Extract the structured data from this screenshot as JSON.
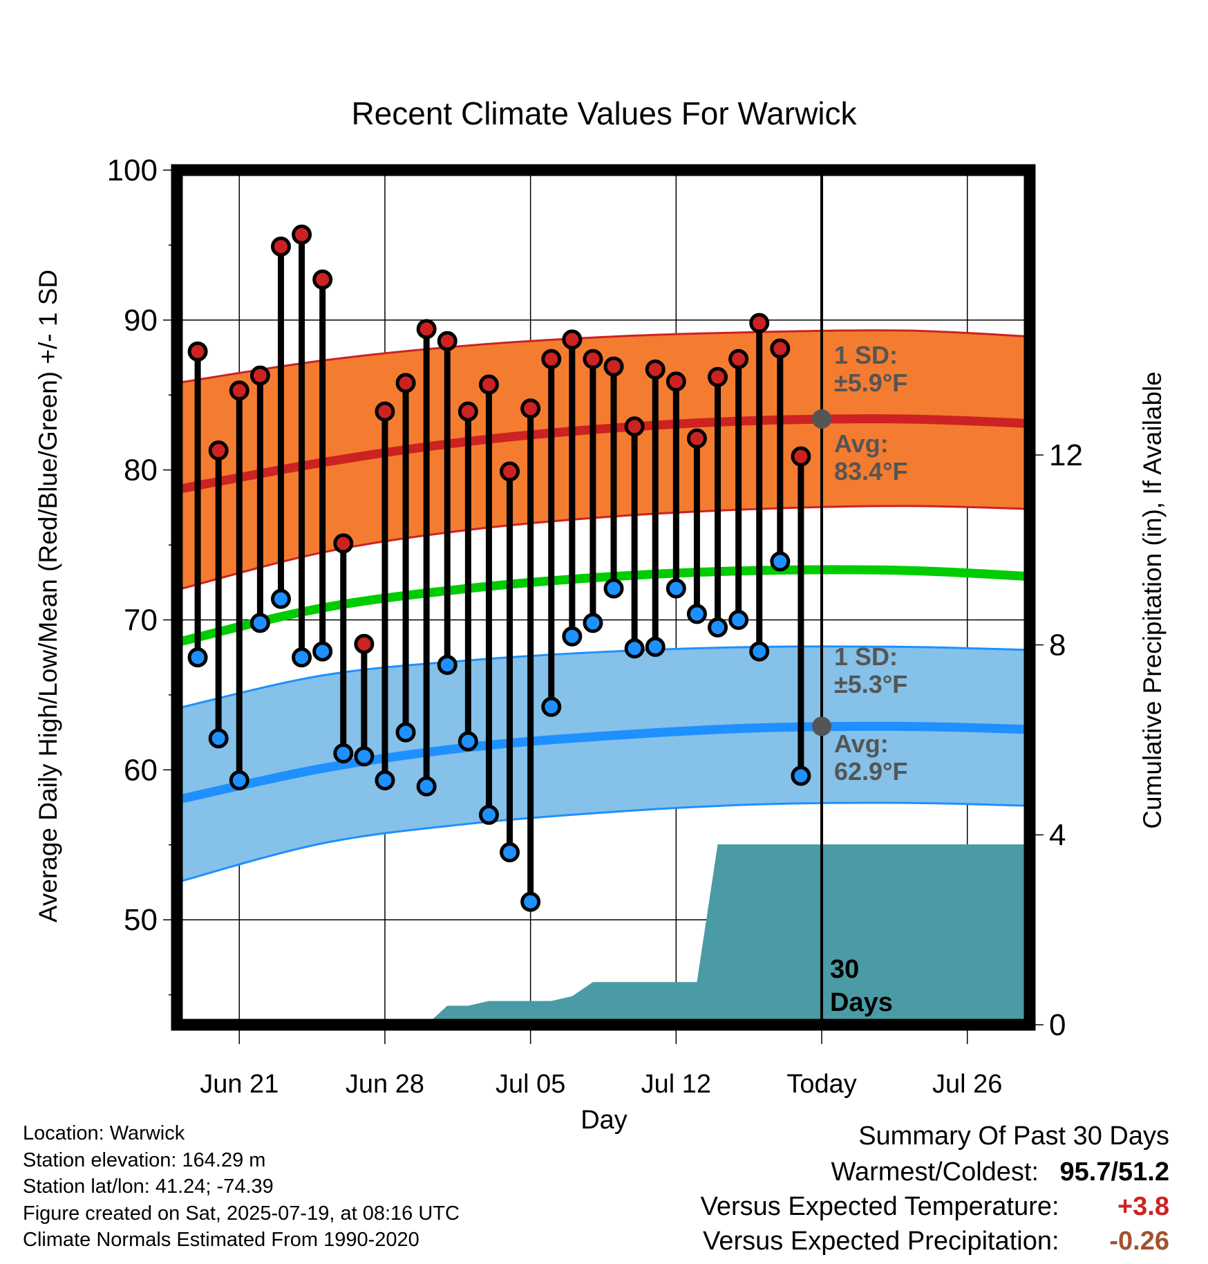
{
  "chart_data": {
    "type": "line",
    "title": "Recent Climate Values For Warwick",
    "xlabel": "Day",
    "ylabel_left": "Average Daily High/Low/Mean (Red/Blue/Green) +/- 1 SD",
    "ylabel_right": "Cumulative Precipitation (in), If Available",
    "ylim_left": [
      43,
      100
    ],
    "ylim_right": [
      0,
      18
    ],
    "left_ticks": [
      50,
      60,
      70,
      80,
      90,
      100
    ],
    "right_ticks": [
      0,
      4,
      8,
      12
    ],
    "x_ticks": [
      "Jun 21",
      "Jun 28",
      "Jul 05",
      "Jul 12",
      "Today",
      "Jul 26"
    ],
    "x_range": [
      "2025-06-18",
      "2025-07-29"
    ],
    "today": "2025-07-19",
    "days": [
      "2025-06-19",
      "2025-06-20",
      "2025-06-21",
      "2025-06-22",
      "2025-06-23",
      "2025-06-24",
      "2025-06-25",
      "2025-06-26",
      "2025-06-27",
      "2025-06-28",
      "2025-06-29",
      "2025-06-30",
      "2025-07-01",
      "2025-07-02",
      "2025-07-03",
      "2025-07-04",
      "2025-07-05",
      "2025-07-06",
      "2025-07-07",
      "2025-07-08",
      "2025-07-09",
      "2025-07-10",
      "2025-07-11",
      "2025-07-12",
      "2025-07-13",
      "2025-07-14",
      "2025-07-15",
      "2025-07-16",
      "2025-07-17",
      "2025-07-18"
    ],
    "series": [
      {
        "name": "High",
        "values": [
          87.9,
          81.3,
          85.3,
          86.3,
          94.9,
          95.7,
          92.7,
          75.1,
          68.4,
          83.9,
          85.8,
          89.4,
          88.6,
          83.9,
          85.7,
          79.9,
          84.1,
          87.4,
          88.7,
          87.4,
          86.9,
          82.9,
          86.7,
          85.9,
          82.1,
          86.2,
          87.4,
          89.8,
          88.1,
          80.9
        ]
      },
      {
        "name": "Low",
        "values": [
          67.5,
          62.1,
          59.3,
          69.8,
          71.4,
          67.5,
          67.9,
          61.1,
          60.9,
          59.3,
          62.5,
          58.9,
          67.0,
          61.9,
          57.0,
          54.5,
          51.2,
          64.2,
          68.9,
          69.8,
          72.1,
          68.1,
          68.2,
          72.1,
          70.4,
          69.5,
          70.0,
          67.9,
          73.9,
          59.6
        ]
      }
    ],
    "normals": {
      "dates": [
        "2025-06-18",
        "2025-06-25",
        "2025-07-02",
        "2025-07-09",
        "2025-07-16",
        "2025-07-23",
        "2025-07-29"
      ],
      "high_avg": [
        78.7,
        80.5,
        81.9,
        82.8,
        83.3,
        83.4,
        83.1
      ],
      "high_sd_upper": [
        85.8,
        87.3,
        88.3,
        88.9,
        89.2,
        89.3,
        88.9
      ],
      "high_sd_lower": [
        72.0,
        74.5,
        76.0,
        76.9,
        77.4,
        77.6,
        77.4
      ],
      "mean_avg": [
        68.5,
        70.8,
        72.1,
        72.9,
        73.3,
        73.3,
        72.9
      ],
      "low_avg": [
        58.0,
        60.1,
        61.5,
        62.3,
        62.8,
        62.9,
        62.7
      ],
      "low_sd_upper": [
        64.1,
        66.3,
        67.3,
        67.9,
        68.2,
        68.2,
        68.0
      ],
      "low_sd_lower": [
        52.5,
        55.1,
        56.4,
        57.2,
        57.7,
        57.8,
        57.6
      ]
    },
    "precip_cumulative": {
      "dates": [
        "2025-06-30",
        "2025-07-01",
        "2025-07-02",
        "2025-07-03",
        "2025-07-04",
        "2025-07-05",
        "2025-07-06",
        "2025-07-07",
        "2025-07-08",
        "2025-07-09",
        "2025-07-10",
        "2025-07-11",
        "2025-07-12",
        "2025-07-13",
        "2025-07-14",
        "2025-07-15",
        "2025-07-16",
        "2025-07-17",
        "2025-07-18",
        "2025-07-19",
        "2025-07-29"
      ],
      "values": [
        0.0,
        0.4,
        0.4,
        0.5,
        0.5,
        0.5,
        0.5,
        0.6,
        0.9,
        0.9,
        0.9,
        0.9,
        0.9,
        0.9,
        3.8,
        3.8,
        3.8,
        3.8,
        3.8,
        3.8,
        3.8
      ]
    },
    "annotations": {
      "high_sd": "1 SD:",
      "high_sd_value": "±5.9°F",
      "high_avg": "Avg:",
      "high_avg_value": "83.4°F",
      "low_sd": "1 SD:",
      "low_sd_value": "±5.3°F",
      "low_avg": "Avg:",
      "low_avg_value": "62.9°F",
      "days_line1": "30",
      "days_line2": "Days"
    },
    "colors": {
      "high": "#cc2222",
      "low": "#1e90ff",
      "mean": "#00cc00",
      "high_band": "#f47c30",
      "low_band": "#85c1e8",
      "precip": "#4a9ba5",
      "annotation": "#555555"
    }
  },
  "info": {
    "location": "Location: Warwick",
    "elevation": "Station elevation: 164.29 m",
    "latlon": "Station lat/lon: 41.24; -74.39",
    "created": "Figure created on Sat, 2025-07-19, at 08:16 UTC",
    "normals": "Climate Normals Estimated From 1990-2020"
  },
  "summary": {
    "title": "Summary Of Past 30 Days",
    "warmest_label": "Warmest/Coldest:",
    "warmest_value": "95.7/51.2",
    "temp_label": "Versus Expected Temperature:",
    "temp_value": "+3.8",
    "temp_color": "#cc2222",
    "precip_label": "Versus Expected Precipitation:",
    "precip_value": "-0.26",
    "precip_color": "#a0522d"
  }
}
